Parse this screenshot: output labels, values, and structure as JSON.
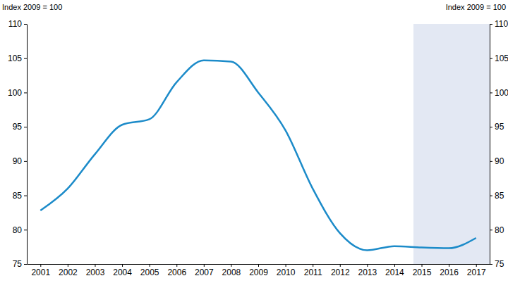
{
  "chart_data": {
    "type": "line",
    "y_label": "Index 2009 = 100",
    "y2_label": "Index 2009 = 100",
    "x": [
      2001,
      2002,
      2003,
      2004,
      2005,
      2006,
      2007,
      2008,
      2009,
      2010,
      2011,
      2012,
      2013,
      2014,
      2015,
      2016,
      2017
    ],
    "values": [
      82.8,
      86,
      91,
      95.3,
      96.1,
      101.5,
      104.7,
      104.5,
      100,
      94.5,
      86,
      79.5,
      77,
      77.6,
      77.4,
      77.3,
      78.8
    ],
    "color": "#1c8bc9",
    "xlim": [
      2000.5,
      2017.5
    ],
    "xticks": [
      2001,
      2002,
      2003,
      2004,
      2005,
      2006,
      2007,
      2008,
      2009,
      2010,
      2011,
      2012,
      2013,
      2014,
      2015,
      2016,
      2017
    ],
    "ylim": [
      75,
      110
    ],
    "yticks": [
      75,
      80,
      85,
      90,
      95,
      100,
      105,
      110
    ],
    "y2lim": [
      75,
      110
    ],
    "y2ticks": [
      75,
      80,
      85,
      90,
      95,
      100,
      105,
      110
    ],
    "shaded_x": [
      2014.7,
      2017.5
    ],
    "grid": false
  }
}
